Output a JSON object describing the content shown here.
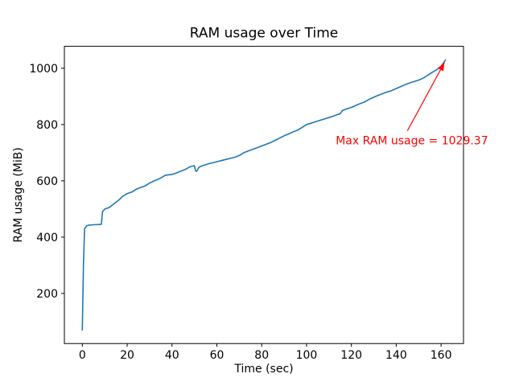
{
  "chart_data": {
    "type": "line",
    "title": "RAM usage over Time",
    "xlabel": "Time (sec)",
    "ylabel": "RAM usage (MiB)",
    "xlim": [
      -8,
      170
    ],
    "ylim": [
      22,
      1078
    ],
    "xticks": [
      0,
      20,
      40,
      60,
      80,
      100,
      120,
      140,
      160
    ],
    "yticks": [
      200,
      400,
      600,
      800,
      1000
    ],
    "grid": false,
    "legend": "none",
    "line_color": "#1f77b4",
    "series": [
      {
        "name": "RAM usage",
        "x": [
          0,
          0.5,
          1,
          2,
          3,
          5,
          8,
          8.5,
          9,
          10,
          12,
          14,
          16,
          18,
          20,
          22,
          24,
          26,
          28,
          30,
          32,
          34,
          36,
          37,
          38,
          40,
          42,
          44,
          46,
          48,
          50,
          50.5,
          51,
          52,
          53,
          54,
          56,
          58,
          60,
          62,
          64,
          66,
          68,
          70,
          72,
          74,
          76,
          78,
          80,
          82,
          84,
          86,
          88,
          90,
          92,
          94,
          96,
          98,
          100,
          102,
          104,
          106,
          108,
          110,
          112,
          114,
          115,
          116,
          118,
          120,
          122,
          124,
          126,
          128,
          130,
          132,
          134,
          136,
          138,
          140,
          142,
          144,
          146,
          148,
          150,
          152,
          154,
          156,
          158,
          160,
          161,
          162
        ],
        "y": [
          70,
          300,
          430,
          441,
          443,
          444,
          445,
          446,
          490,
          500,
          505,
          518,
          530,
          545,
          555,
          560,
          570,
          576,
          582,
          592,
          600,
          606,
          615,
          620,
          621,
          623,
          628,
          635,
          641,
          650,
          654,
          636,
          634,
          648,
          652,
          655,
          660,
          664,
          668,
          672,
          676,
          680,
          684,
          690,
          700,
          706,
          712,
          718,
          724,
          730,
          736,
          744,
          752,
          760,
          767,
          774,
          780,
          790,
          800,
          805,
          810,
          815,
          820,
          825,
          830,
          836,
          838,
          850,
          856,
          861,
          868,
          875,
          881,
          890,
          897,
          904,
          910,
          916,
          921,
          928,
          935,
          942,
          948,
          953,
          958,
          965,
          975,
          985,
          995,
          1007,
          1018,
          1029.37
        ]
      }
    ],
    "annotation": {
      "text": "Max RAM usage = 1029.37",
      "color": "#ff0000",
      "text_xy": [
        113,
        730
      ],
      "arrow_from": [
        145,
        778
      ],
      "arrow_to": [
        161.5,
        1020
      ],
      "max_value": "1029.37"
    }
  }
}
